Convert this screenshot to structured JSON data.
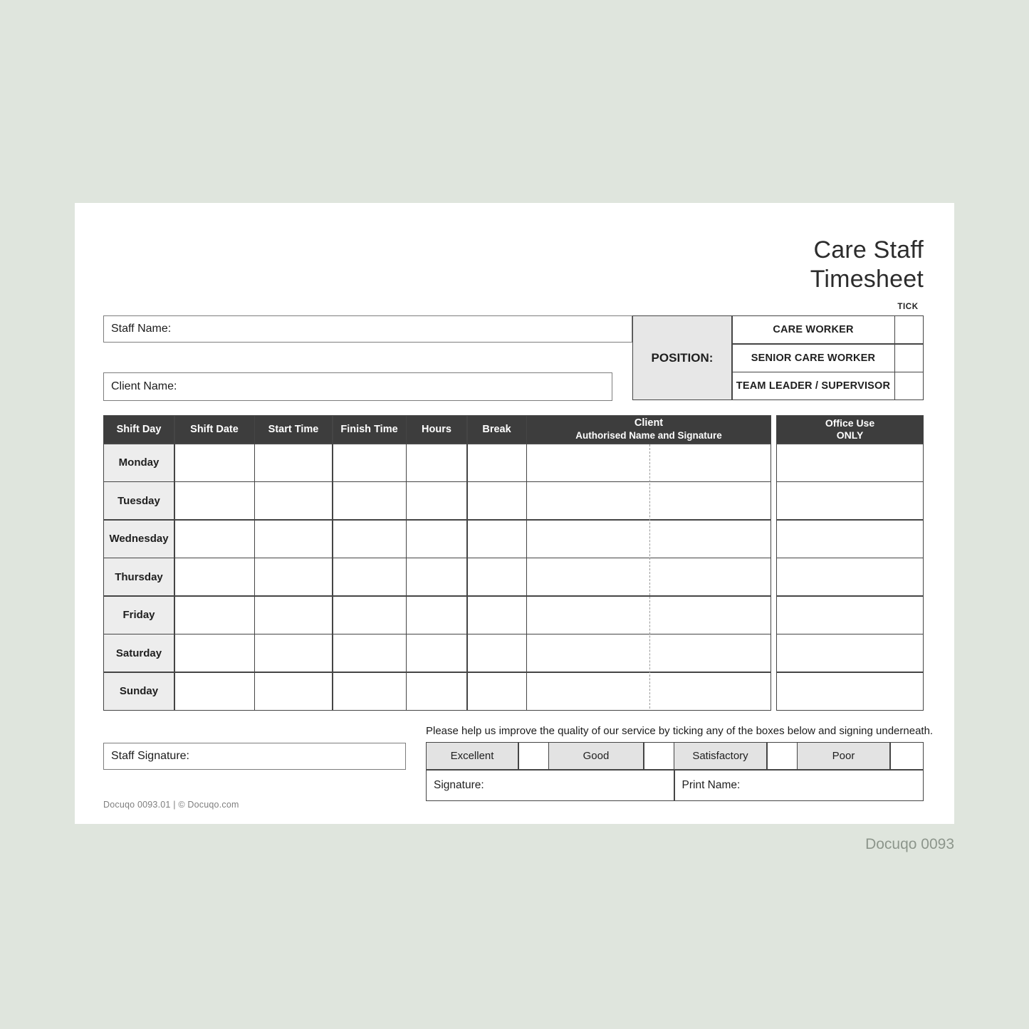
{
  "page": {
    "title_lines": [
      "Care Staff",
      "Timesheet"
    ],
    "tick_label": "TICK",
    "staff_name_label": "Staff Name:",
    "client_name_label": "Client Name:",
    "position_label": "POSITION:",
    "positions": [
      "CARE WORKER",
      "SENIOR CARE WORKER",
      "TEAM LEADER / SUPERVISOR"
    ]
  },
  "timesheet_table": {
    "headers": [
      "Shift Day",
      "Shift Date",
      "Start Time",
      "Finish Time",
      "Hours",
      "Break"
    ],
    "client_header": {
      "line1": "Client",
      "line2": "Authorised Name and Signature"
    },
    "office_use_header": {
      "line1": "Office Use",
      "line2": "ONLY"
    },
    "days": [
      "Monday",
      "Tuesday",
      "Wednesday",
      "Thursday",
      "Friday",
      "Saturday",
      "Sunday"
    ]
  },
  "footer_section": {
    "staff_signature_label": "Staff Signature:",
    "feedback_prompt": "Please help us improve the quality of our service by ticking any of the boxes below and signing underneath.",
    "ratings": [
      "Excellent",
      "Good",
      "Satisfactory",
      "Poor"
    ],
    "signature_label": "Signature:",
    "print_name_label": "Print Name:",
    "doc_ref": "Docuqo 0093.01 | © Docuqo.com"
  },
  "watermark": "Docuqo 0093",
  "colors": {
    "background": "#dfe5dd",
    "page": "#ffffff",
    "table_header_bg": "#3d3d3d",
    "shaded_cell_bg": "#ededed",
    "border": "#454545",
    "watermark_text": "#8d968c"
  }
}
